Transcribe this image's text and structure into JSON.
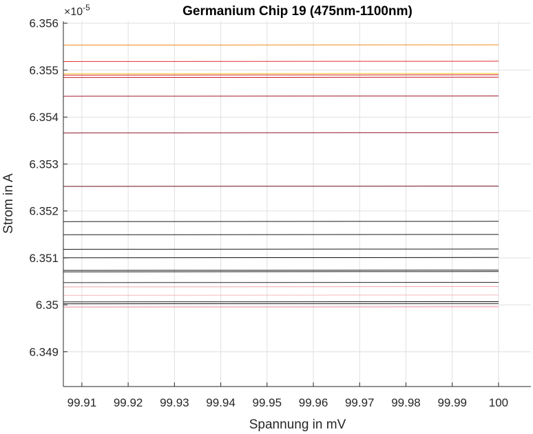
{
  "chart_data": {
    "type": "line",
    "title": "Germanium Chip 19 (475nm-1100nm)",
    "xlabel": "Spannung in mV",
    "ylabel": "Strom in A",
    "y_exponent_label": "×10",
    "y_exponent": "-5",
    "xlim": [
      99.906,
      100.007
    ],
    "ylim": [
      6.34826,
      6.35604
    ],
    "x_ticks": [
      99.91,
      99.92,
      99.93,
      99.94,
      99.95,
      99.96,
      99.97,
      99.98,
      99.99,
      100
    ],
    "x_tick_labels": [
      "99.91",
      "99.92",
      "99.93",
      "99.94",
      "99.95",
      "99.96",
      "99.97",
      "99.98",
      "99.99",
      "100"
    ],
    "y_ticks": [
      6.349,
      6.35,
      6.351,
      6.352,
      6.353,
      6.354,
      6.355,
      6.356
    ],
    "y_tick_labels": [
      "6.349",
      "6.35",
      "6.351",
      "6.352",
      "6.353",
      "6.354",
      "6.355",
      "6.356"
    ],
    "grid": true,
    "slope_per_mV": 6.85e-05,
    "series": [
      {
        "y_at_100": 6.35554,
        "color": "#f08a1e"
      },
      {
        "y_at_100": 6.35519,
        "color": "#e32d2d"
      },
      {
        "y_at_100": 6.35493,
        "color": "#f2c21f"
      },
      {
        "y_at_100": 6.3549,
        "color": "#d92626"
      },
      {
        "y_at_100": 6.35485,
        "color": "#c0182a"
      },
      {
        "y_at_100": 6.35445,
        "color": "#a3172b"
      },
      {
        "y_at_100": 6.35367,
        "color": "#8c1023"
      },
      {
        "y_at_100": 6.35253,
        "color": "#6a0f14"
      },
      {
        "y_at_100": 6.35178,
        "color": "#1a1a1a"
      },
      {
        "y_at_100": 6.3515,
        "color": "#1a1a1a"
      },
      {
        "y_at_100": 6.35119,
        "color": "#1a1a1a"
      },
      {
        "y_at_100": 6.35101,
        "color": "#1a1a1a"
      },
      {
        "y_at_100": 6.35074,
        "color": "#1a1a1a"
      },
      {
        "y_at_100": 6.35071,
        "color": "#1a1a1a"
      },
      {
        "y_at_100": 6.35048,
        "color": "#2a2a2a"
      },
      {
        "y_at_100": 6.35039,
        "color": "#f0a0a8"
      },
      {
        "y_at_100": 6.35021,
        "color": "#f4b8be"
      },
      {
        "y_at_100": 6.35007,
        "color": "#1a1a1a"
      },
      {
        "y_at_100": 6.35003,
        "color": "#222222"
      },
      {
        "y_at_100": 6.34996,
        "color": "#e8889a"
      }
    ]
  }
}
